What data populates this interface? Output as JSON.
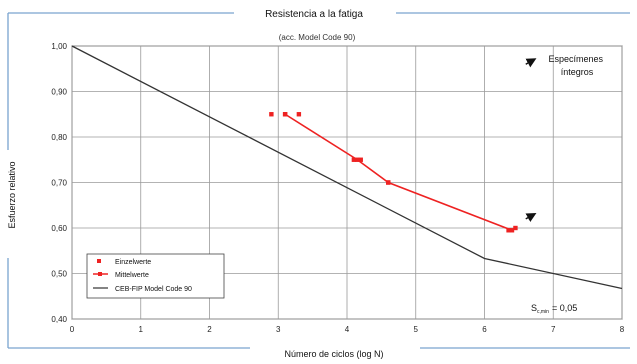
{
  "figure": {
    "title": "Resistencia a la fatiga",
    "subtitle": "(acc. Model Code 90)",
    "xlabel": "Número de ciclos (log N)",
    "ylabel": "Esfuerzo relativo",
    "annotation_intact": "Especímenes\níntegros",
    "annotation_smin": "S",
    "annotation_smin_sub": "c,min",
    "annotation_smin_value": "= 0,05"
  },
  "chart_data": {
    "type": "line",
    "title": "Resistencia a la fatiga",
    "subtitle": "(acc. Model Code 90)",
    "xlabel": "Número de ciclos (log N)",
    "ylabel": "Esfuerzo relativo",
    "xlim": [
      0,
      8
    ],
    "ylim": [
      0.4,
      1.0
    ],
    "x_ticks": [
      0,
      1,
      2,
      3,
      4,
      5,
      6,
      7,
      8
    ],
    "y_ticks": [
      0.4,
      0.5,
      0.6,
      0.7,
      0.8,
      0.9,
      1.0
    ],
    "y_tick_labels": [
      "0,40",
      "0,50",
      "0,60",
      "0,70",
      "0,80",
      "0,90",
      "1,00"
    ],
    "grid": true,
    "legend_position": "bottom-left",
    "series": [
      {
        "name": "Einzelwerte",
        "style": "markers",
        "color": "#ee2222",
        "points": [
          [
            2.9,
            0.85
          ],
          [
            3.1,
            0.85
          ],
          [
            3.3,
            0.85
          ],
          [
            4.1,
            0.75
          ],
          [
            4.2,
            0.75
          ],
          [
            4.6,
            0.7
          ],
          [
            6.35,
            0.595
          ],
          [
            6.45,
            0.6
          ]
        ]
      },
      {
        "name": "Mittelwerte",
        "style": "line-markers",
        "color": "#ee2222",
        "points": [
          [
            3.1,
            0.85
          ],
          [
            4.15,
            0.75
          ],
          [
            4.6,
            0.7
          ],
          [
            6.4,
            0.595
          ]
        ]
      },
      {
        "name": "CEB-FIP Model Code 90",
        "style": "line",
        "color": "#333333",
        "points": [
          [
            0,
            1.0
          ],
          [
            6.0,
            0.533
          ],
          [
            8.0,
            0.467
          ]
        ]
      }
    ],
    "arrows": [
      {
        "from": [
          6.6,
          0.62
        ],
        "to": [
          6.72,
          0.63
        ]
      },
      {
        "from": [
          6.6,
          0.96
        ],
        "to": [
          6.72,
          0.97
        ]
      }
    ]
  }
}
